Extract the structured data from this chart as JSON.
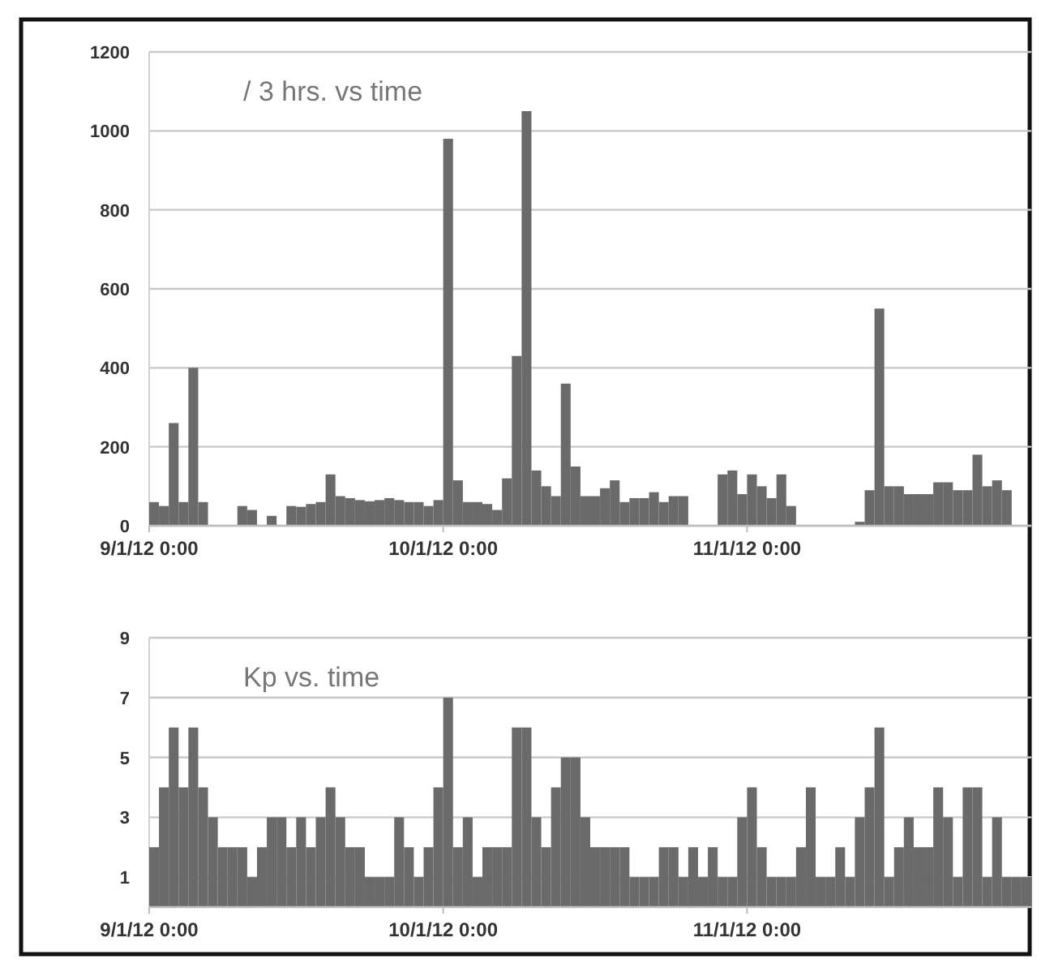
{
  "chart_data": [
    {
      "type": "bar",
      "title": "/ 3 hrs. vs time",
      "color": "#6a6a6a",
      "x": [
        "2012-09-01",
        "2012-09-02",
        "2012-09-03",
        "2012-09-04",
        "2012-09-05",
        "2012-09-06",
        "2012-09-07",
        "2012-09-08",
        "2012-09-09",
        "2012-09-10",
        "2012-09-11",
        "2012-09-12",
        "2012-09-13",
        "2012-09-14",
        "2012-09-15",
        "2012-09-16",
        "2012-09-17",
        "2012-09-18",
        "2012-09-19",
        "2012-09-20",
        "2012-09-21",
        "2012-09-22",
        "2012-09-23",
        "2012-09-24",
        "2012-09-25",
        "2012-09-26",
        "2012-09-27",
        "2012-09-28",
        "2012-09-29",
        "2012-09-30",
        "2012-10-01",
        "2012-10-02",
        "2012-10-03",
        "2012-10-04",
        "2012-10-05",
        "2012-10-06",
        "2012-10-07",
        "2012-10-08",
        "2012-10-09",
        "2012-10-10",
        "2012-10-11",
        "2012-10-12",
        "2012-10-13",
        "2012-10-14",
        "2012-10-15",
        "2012-10-16",
        "2012-10-17",
        "2012-10-18",
        "2012-10-19",
        "2012-10-20",
        "2012-10-21",
        "2012-10-22",
        "2012-10-23",
        "2012-10-24",
        "2012-10-25",
        "2012-10-26",
        "2012-10-27",
        "2012-10-28",
        "2012-10-29",
        "2012-10-30",
        "2012-10-31",
        "2012-11-01",
        "2012-11-02",
        "2012-11-03",
        "2012-11-04",
        "2012-11-05",
        "2012-11-06",
        "2012-11-07",
        "2012-11-08",
        "2012-11-09",
        "2012-11-10",
        "2012-11-11",
        "2012-11-12",
        "2012-11-13",
        "2012-11-14",
        "2012-11-15",
        "2012-11-16",
        "2012-11-17",
        "2012-11-18",
        "2012-11-19",
        "2012-11-20",
        "2012-11-21",
        "2012-11-22",
        "2012-11-23",
        "2012-11-24",
        "2012-11-25",
        "2012-11-26",
        "2012-11-27"
      ],
      "values": [
        60,
        50,
        260,
        60,
        400,
        60,
        null,
        null,
        null,
        50,
        40,
        null,
        25,
        null,
        50,
        48,
        55,
        60,
        130,
        75,
        70,
        65,
        62,
        65,
        70,
        65,
        60,
        60,
        50,
        65,
        980,
        115,
        60,
        60,
        55,
        40,
        120,
        430,
        1050,
        140,
        100,
        75,
        360,
        150,
        75,
        75,
        95,
        115,
        60,
        70,
        70,
        85,
        60,
        75,
        75,
        null,
        null,
        null,
        130,
        140,
        80,
        130,
        100,
        70,
        130,
        50,
        null,
        null,
        null,
        null,
        null,
        null,
        10,
        90,
        550,
        100,
        100,
        80,
        80,
        80,
        110,
        110,
        90,
        90,
        180,
        100,
        115,
        90
      ],
      "xlim": [
        "2012-09-01",
        "2012-11-30"
      ],
      "xticks": [
        {
          "value": "2012-09-01",
          "label": "9/1/12 0:00"
        },
        {
          "value": "2012-10-01",
          "label": "10/1/12 0:00"
        },
        {
          "value": "2012-11-01",
          "label": "11/1/12 0:00"
        }
      ],
      "ylim": [
        0,
        1200
      ],
      "yticks": [
        0,
        200,
        400,
        600,
        800,
        1000,
        1200
      ],
      "grid": "y"
    },
    {
      "type": "bar",
      "title": "Kp vs. time",
      "color": "#6a6a6a",
      "x": [
        "2012-09-01",
        "2012-09-02",
        "2012-09-03",
        "2012-09-04",
        "2012-09-05",
        "2012-09-06",
        "2012-09-07",
        "2012-09-08",
        "2012-09-09",
        "2012-09-10",
        "2012-09-11",
        "2012-09-12",
        "2012-09-13",
        "2012-09-14",
        "2012-09-15",
        "2012-09-16",
        "2012-09-17",
        "2012-09-18",
        "2012-09-19",
        "2012-09-20",
        "2012-09-21",
        "2012-09-22",
        "2012-09-23",
        "2012-09-24",
        "2012-09-25",
        "2012-09-26",
        "2012-09-27",
        "2012-09-28",
        "2012-09-29",
        "2012-09-30",
        "2012-10-01",
        "2012-10-02",
        "2012-10-03",
        "2012-10-04",
        "2012-10-05",
        "2012-10-06",
        "2012-10-07",
        "2012-10-08",
        "2012-10-09",
        "2012-10-10",
        "2012-10-11",
        "2012-10-12",
        "2012-10-13",
        "2012-10-14",
        "2012-10-15",
        "2012-10-16",
        "2012-10-17",
        "2012-10-18",
        "2012-10-19",
        "2012-10-20",
        "2012-10-21",
        "2012-10-22",
        "2012-10-23",
        "2012-10-24",
        "2012-10-25",
        "2012-10-26",
        "2012-10-27",
        "2012-10-28",
        "2012-10-29",
        "2012-10-30",
        "2012-10-31",
        "2012-11-01",
        "2012-11-02",
        "2012-11-03",
        "2012-11-04",
        "2012-11-05",
        "2012-11-06",
        "2012-11-07",
        "2012-11-08",
        "2012-11-09",
        "2012-11-10",
        "2012-11-11",
        "2012-11-12",
        "2012-11-13",
        "2012-11-14",
        "2012-11-15",
        "2012-11-16",
        "2012-11-17",
        "2012-11-18",
        "2012-11-19",
        "2012-11-20",
        "2012-11-21",
        "2012-11-22",
        "2012-11-23",
        "2012-11-24",
        "2012-11-25",
        "2012-11-26",
        "2012-11-27",
        "2012-11-28",
        "2012-11-29"
      ],
      "values": [
        2,
        4,
        6,
        4,
        6,
        4,
        3,
        2,
        2,
        2,
        1,
        2,
        3,
        3,
        2,
        3,
        2,
        3,
        4,
        3,
        2,
        2,
        1,
        1,
        1,
        3,
        2,
        1,
        2,
        4,
        7,
        2,
        3,
        1,
        2,
        2,
        2,
        6,
        6,
        3,
        2,
        4,
        5,
        5,
        3,
        2,
        2,
        2,
        2,
        1,
        1,
        1,
        2,
        2,
        1,
        2,
        1,
        2,
        1,
        1,
        3,
        4,
        2,
        1,
        1,
        1,
        2,
        4,
        1,
        1,
        2,
        1,
        3,
        4,
        6,
        1,
        2,
        3,
        2,
        2,
        4,
        3,
        1,
        4,
        4,
        1,
        3,
        1,
        1,
        1
      ],
      "xlim": [
        "2012-09-01",
        "2012-11-30"
      ],
      "xticks": [
        {
          "value": "2012-09-01",
          "label": "9/1/12 0:00"
        },
        {
          "value": "2012-10-01",
          "label": "10/1/12 0:00"
        },
        {
          "value": "2012-11-01",
          "label": "11/1/12 0:00"
        }
      ],
      "ylim": [
        0,
        9
      ],
      "yticks": [
        1,
        3,
        5,
        7,
        9
      ],
      "grid": "y"
    }
  ]
}
